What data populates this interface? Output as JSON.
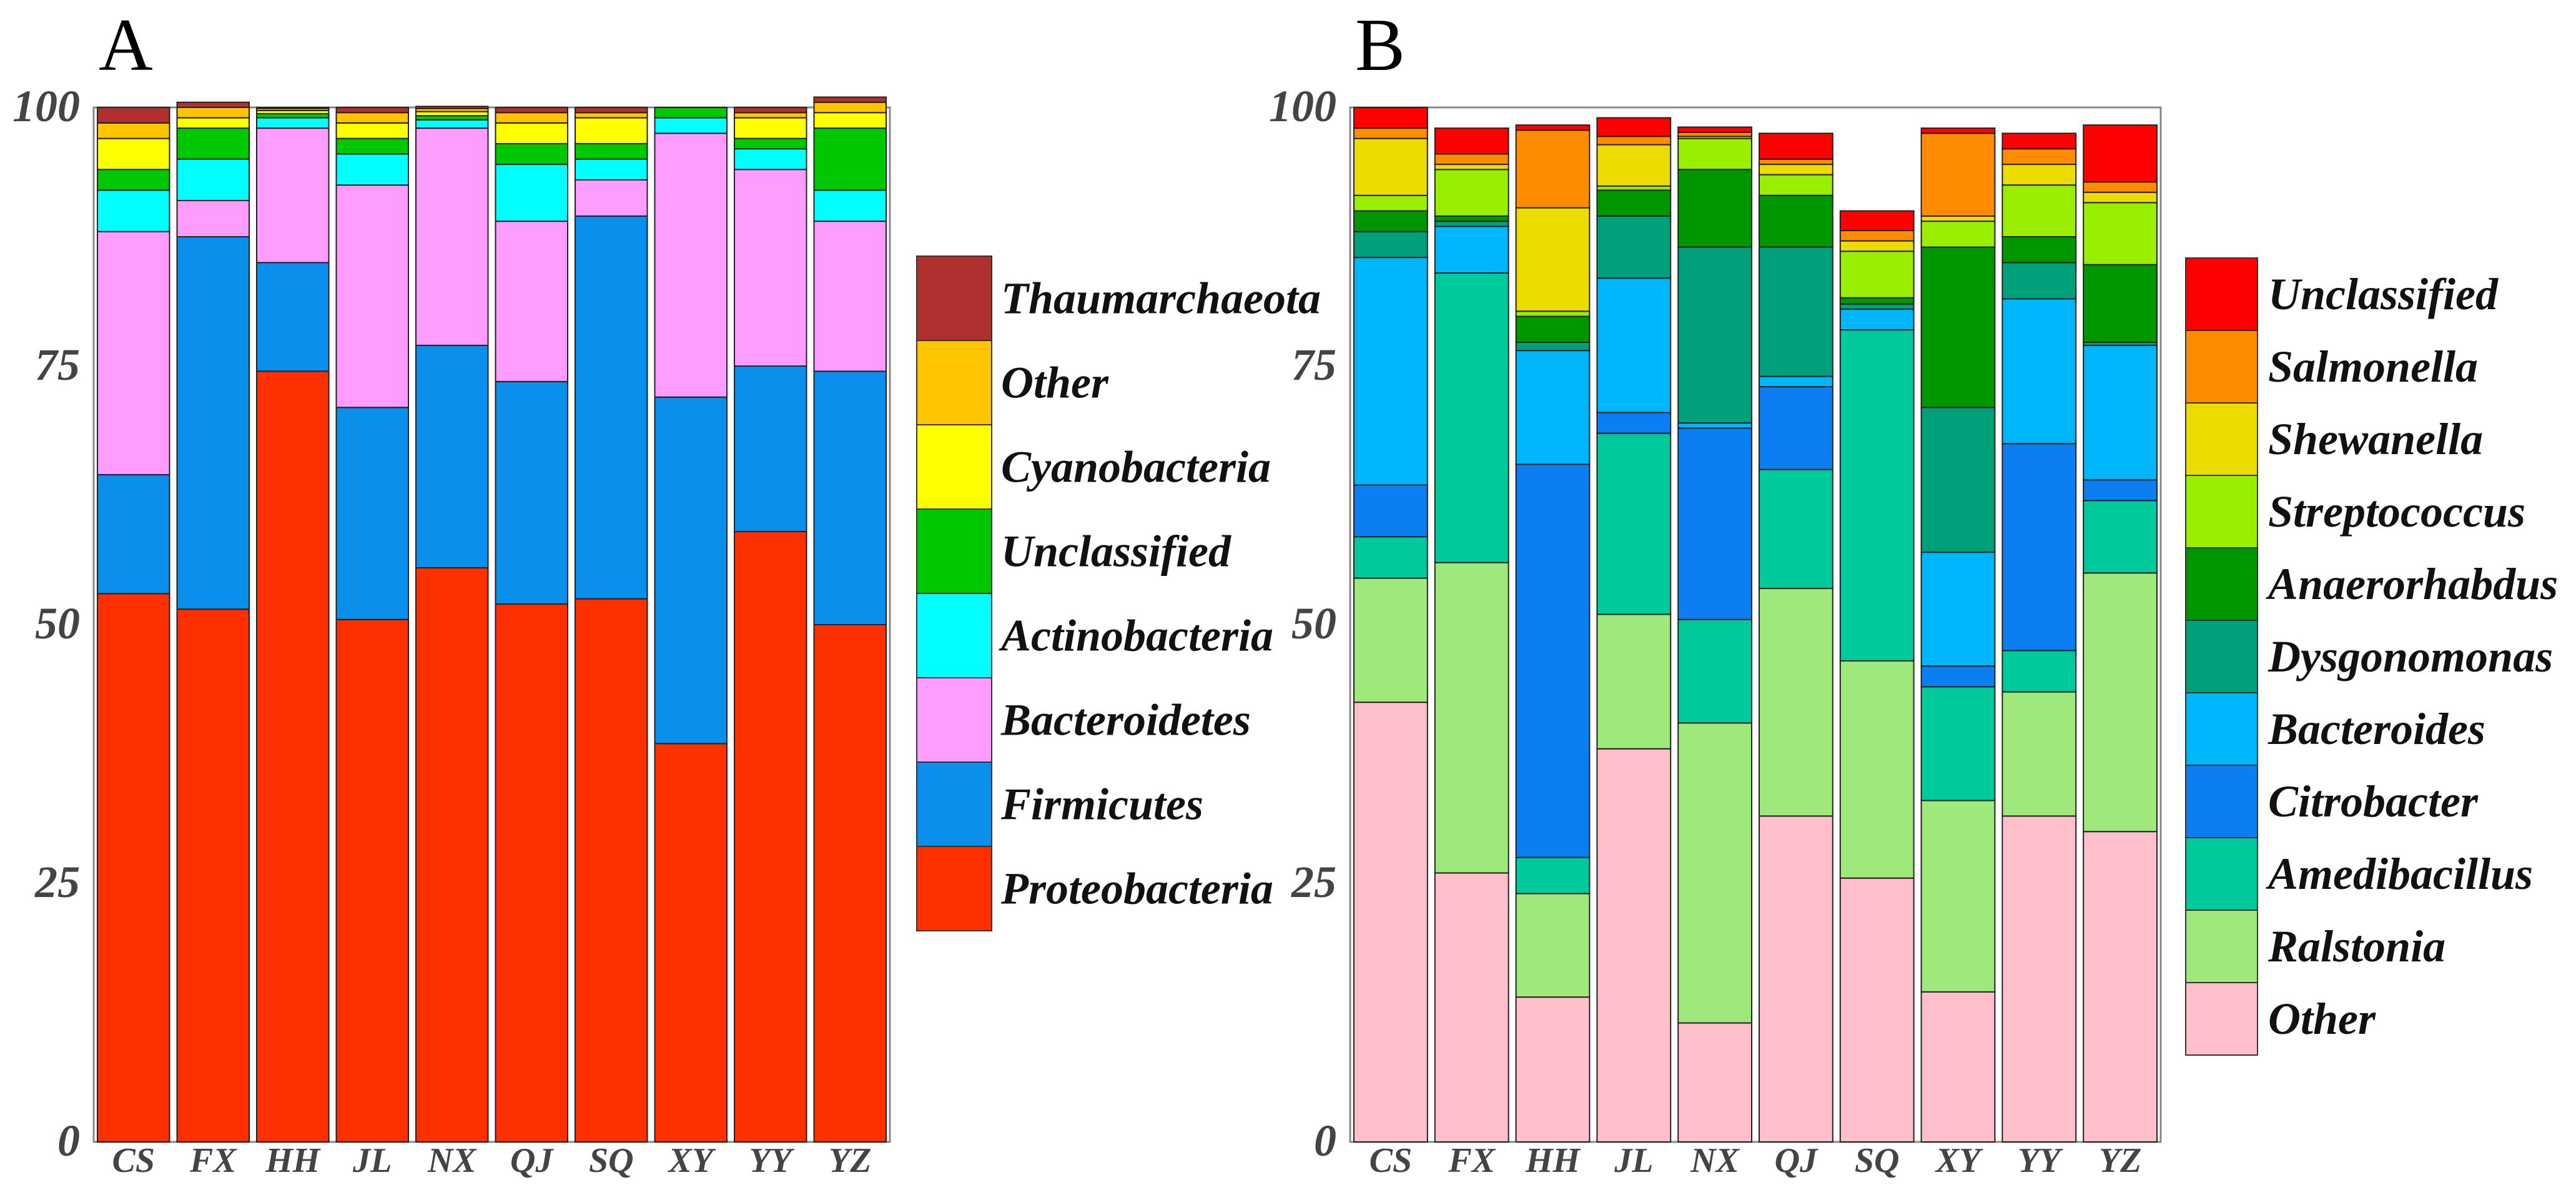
{
  "chart_data": [
    {
      "panel": "A",
      "type": "bar",
      "stacked": true,
      "categories": [
        "CS",
        "FX",
        "HH",
        "JL",
        "NX",
        "QJ",
        "SQ",
        "XY",
        "YY",
        "YZ"
      ],
      "yticks": [
        "100",
        "75",
        "50",
        "25",
        "0"
      ],
      "ylim": [
        0,
        100
      ],
      "legend": "right",
      "series": [
        {
          "name": "Proteobacteria",
          "color": "#ff3000",
          "values": [
            53,
            51.5,
            74.5,
            50.5,
            55.5,
            52,
            52.5,
            38.5,
            59,
            50
          ]
        },
        {
          "name": "Firmicutes",
          "color": "#0b8fec",
          "values": [
            11.5,
            36,
            10.5,
            20.5,
            21.5,
            21.5,
            37,
            33.5,
            16,
            24.5
          ]
        },
        {
          "name": "Bacteroidetes",
          "color": "#ff9cff",
          "values": [
            23.5,
            3.5,
            13,
            21.5,
            21,
            15.5,
            3.5,
            25.5,
            19,
            14.5
          ]
        },
        {
          "name": "Actinobacteria",
          "color": "#00ffff",
          "values": [
            4,
            4,
            1,
            3,
            0.8,
            5.5,
            2,
            1.5,
            2,
            3
          ]
        },
        {
          "name": "Unclassified",
          "color": "#00c800",
          "values": [
            2,
            3,
            0.4,
            1.5,
            0.4,
            2,
            1.5,
            1,
            1,
            6
          ]
        },
        {
          "name": "Cyanobacteria",
          "color": "#ffff00",
          "values": [
            3,
            1,
            0.3,
            1.5,
            0.4,
            2,
            2.5,
            0,
            2,
            1.5
          ]
        },
        {
          "name": "Other",
          "color": "#ffc400",
          "values": [
            1.5,
            1,
            0.2,
            1,
            0.3,
            1,
            0.5,
            0,
            0.5,
            1
          ]
        },
        {
          "name": "Thaumarchaeota",
          "color": "#b03030",
          "values": [
            1.5,
            0.5,
            0.1,
            0.5,
            0.2,
            0.5,
            0.5,
            0,
            0.5,
            0.5
          ]
        }
      ]
    },
    {
      "panel": "B",
      "type": "bar",
      "stacked": true,
      "categories": [
        "CS",
        "FX",
        "HH",
        "JL",
        "NX",
        "QJ",
        "SQ",
        "XY",
        "YY",
        "YZ"
      ],
      "yticks": [
        "100",
        "75",
        "50",
        "25",
        "0"
      ],
      "ylim": [
        0,
        100
      ],
      "legend": "right",
      "series": [
        {
          "name": "Other",
          "color": "#ffc0cb",
          "values": [
            42.5,
            26,
            14,
            38,
            11.5,
            31.5,
            25.5,
            14.5,
            31.5,
            30
          ]
        },
        {
          "name": "Ralstonia",
          "color": "#9ee87c",
          "values": [
            12,
            30,
            10,
            13,
            29,
            22,
            21,
            18.5,
            12,
            25
          ]
        },
        {
          "name": "Amedibacillus",
          "color": "#00ca9c",
          "values": [
            4,
            28,
            3.5,
            17.5,
            10,
            11.5,
            32,
            11,
            4,
            7
          ]
        },
        {
          "name": "Citrobacter",
          "color": "#0b7ff2",
          "values": [
            5,
            0,
            38,
            2,
            18.5,
            8,
            0,
            2,
            20,
            2
          ]
        },
        {
          "name": "Bacteroides",
          "color": "#00b6fa",
          "values": [
            22,
            4.5,
            11,
            13,
            0.5,
            1,
            2,
            11,
            14,
            13
          ]
        },
        {
          "name": "Dysgonomonas",
          "color": "#00a07a",
          "values": [
            2.5,
            0.5,
            0.8,
            6,
            17,
            12.5,
            0.5,
            14,
            3.5,
            0.3
          ]
        },
        {
          "name": "Anaerorhabdus",
          "color": "#009600",
          "values": [
            2,
            0.5,
            2.5,
            2.5,
            7.5,
            5,
            0.6,
            15.5,
            2.5,
            7.5
          ]
        },
        {
          "name": "Streptococcus",
          "color": "#9aee00",
          "values": [
            1.5,
            4.5,
            0.5,
            0.4,
            3,
            2,
            4.5,
            2.5,
            5,
            6
          ]
        },
        {
          "name": "Shewanella",
          "color": "#ecdc00",
          "values": [
            5.5,
            0.5,
            10,
            4,
            0.2,
            1,
            1,
            0.5,
            2,
            1
          ]
        },
        {
          "name": "Salmonella",
          "color": "#ff8c00",
          "values": [
            1,
            1,
            7.5,
            0.8,
            0.4,
            0.5,
            1,
            8,
            1.5,
            1
          ]
        },
        {
          "name": "Unclassified",
          "color": "#ff0000",
          "values": [
            2,
            2.5,
            0.5,
            1.8,
            0.5,
            2.5,
            1.9,
            0.5,
            1.5,
            5.5
          ]
        }
      ]
    }
  ]
}
